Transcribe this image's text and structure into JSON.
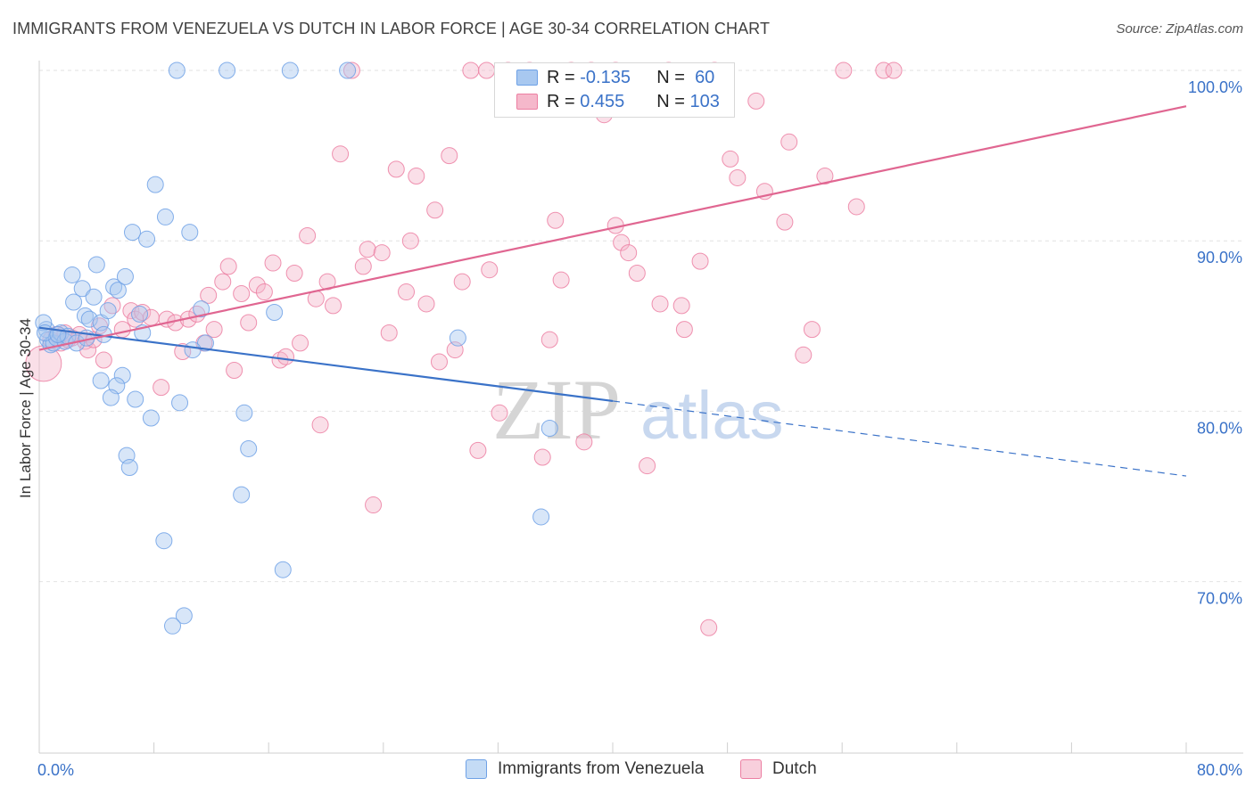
{
  "title": "IMMIGRANTS FROM VENEZUELA VS DUTCH IN LABOR FORCE | AGE 30-34 CORRELATION CHART",
  "source": "Source: ZipAtlas.com",
  "watermark": {
    "zip": "ZIP",
    "atlas": "atlas"
  },
  "legend": {
    "rows": [
      {
        "r_label": "R =",
        "r_value": "-0.135",
        "n_label": "N =",
        "n_value": "60",
        "color": "#a8c8f0"
      },
      {
        "r_label": "R =",
        "r_value": "0.455",
        "n_label": "N =",
        "n_value": "103",
        "color": "#f5b8cb"
      }
    ]
  },
  "chart_data": {
    "type": "scatter",
    "title": "IMMIGRANTS FROM VENEZUELA VS DUTCH IN LABOR FORCE | AGE 30-34 CORRELATION CHART",
    "xlabel": "",
    "ylabel": "In Labor Force | Age 30-34",
    "xlim": [
      0,
      80
    ],
    "ylim": [
      60,
      100
    ],
    "x_tick_labels": [
      "0.0%",
      "80.0%"
    ],
    "y_ticks": [
      70,
      80,
      90,
      100
    ],
    "y_tick_labels": [
      "70.0%",
      "80.0%",
      "90.0%",
      "100.0%"
    ],
    "grid": true,
    "legend_position": "top-center",
    "series": [
      {
        "name": "Immigrants from Venezuela",
        "color": "#6ea1e6",
        "fill": "#a8c8f0",
        "r": -0.135,
        "n": 60,
        "trend": {
          "x": [
            0,
            40
          ],
          "y": [
            84.9,
            80.6
          ],
          "dashed_to": [
            80,
            76.2
          ]
        },
        "points": [
          [
            0.5,
            84.8
          ],
          [
            0.6,
            84.2
          ],
          [
            0.8,
            83.9
          ],
          [
            1.0,
            84.0
          ],
          [
            1.2,
            84.3
          ],
          [
            1.5,
            84.6
          ],
          [
            1.8,
            84.1
          ],
          [
            2.0,
            84.4
          ],
          [
            0.3,
            85.2
          ],
          [
            0.4,
            84.6
          ],
          [
            2.3,
            88.0
          ],
          [
            2.4,
            86.4
          ],
          [
            3.0,
            87.2
          ],
          [
            3.2,
            85.6
          ],
          [
            3.5,
            85.4
          ],
          [
            3.8,
            86.7
          ],
          [
            4.0,
            88.6
          ],
          [
            4.3,
            85.2
          ],
          [
            4.5,
            84.5
          ],
          [
            4.8,
            85.9
          ],
          [
            5.2,
            87.3
          ],
          [
            5.5,
            87.1
          ],
          [
            6.0,
            87.9
          ],
          [
            6.5,
            90.5
          ],
          [
            7.0,
            85.7
          ],
          [
            7.2,
            84.6
          ],
          [
            7.5,
            90.1
          ],
          [
            8.1,
            93.3
          ],
          [
            8.8,
            91.4
          ],
          [
            10.5,
            90.5
          ],
          [
            6.7,
            80.7
          ],
          [
            5.8,
            82.1
          ],
          [
            5.4,
            81.5
          ],
          [
            4.3,
            81.8
          ],
          [
            5.0,
            80.8
          ],
          [
            7.8,
            79.6
          ],
          [
            9.8,
            80.5
          ],
          [
            14.3,
            79.9
          ],
          [
            14.6,
            77.8
          ],
          [
            6.1,
            77.4
          ],
          [
            6.3,
            76.7
          ],
          [
            14.1,
            75.1
          ],
          [
            17.0,
            70.7
          ],
          [
            8.7,
            72.4
          ],
          [
            10.1,
            68.0
          ],
          [
            9.3,
            67.4
          ],
          [
            11.6,
            84.0
          ],
          [
            10.7,
            83.6
          ],
          [
            11.3,
            86.0
          ],
          [
            16.4,
            85.8
          ],
          [
            9.6,
            100
          ],
          [
            13.1,
            100
          ],
          [
            17.5,
            100
          ],
          [
            21.5,
            100
          ],
          [
            29.2,
            84.3
          ],
          [
            35.6,
            79.0
          ],
          [
            35.0,
            73.8
          ],
          [
            1.3,
            84.5
          ],
          [
            2.6,
            84.0
          ],
          [
            3.3,
            84.3
          ]
        ]
      },
      {
        "name": "Dutch",
        "color": "#ec7fa2",
        "fill": "#f5b8cb",
        "r": 0.455,
        "n": 103,
        "trend": {
          "x": [
            0,
            80
          ],
          "y": [
            83.6,
            97.9
          ]
        },
        "points": [
          [
            0.3,
            82.8
          ],
          [
            0.8,
            84.2
          ],
          [
            1.2,
            84.5
          ],
          [
            1.5,
            84.0
          ],
          [
            1.8,
            84.6
          ],
          [
            2.0,
            84.2
          ],
          [
            2.3,
            84.3
          ],
          [
            2.8,
            84.5
          ],
          [
            3.2,
            84.1
          ],
          [
            3.4,
            83.6
          ],
          [
            3.8,
            84.2
          ],
          [
            4.5,
            83.0
          ],
          [
            4.2,
            85.0
          ],
          [
            5.1,
            86.2
          ],
          [
            5.8,
            84.8
          ],
          [
            6.4,
            85.9
          ],
          [
            6.7,
            85.4
          ],
          [
            7.2,
            85.8
          ],
          [
            7.8,
            85.5
          ],
          [
            8.5,
            81.4
          ],
          [
            8.9,
            85.4
          ],
          [
            9.5,
            85.2
          ],
          [
            10.0,
            83.5
          ],
          [
            10.4,
            85.4
          ],
          [
            11.0,
            85.7
          ],
          [
            11.5,
            84.0
          ],
          [
            11.8,
            86.8
          ],
          [
            12.2,
            84.8
          ],
          [
            12.8,
            87.6
          ],
          [
            13.2,
            88.5
          ],
          [
            13.6,
            82.4
          ],
          [
            14.1,
            86.9
          ],
          [
            14.6,
            85.2
          ],
          [
            15.2,
            87.4
          ],
          [
            15.7,
            87.0
          ],
          [
            16.3,
            88.7
          ],
          [
            16.8,
            83.0
          ],
          [
            17.2,
            83.2
          ],
          [
            17.8,
            88.1
          ],
          [
            18.2,
            84.0
          ],
          [
            18.7,
            90.3
          ],
          [
            19.3,
            86.6
          ],
          [
            19.6,
            79.2
          ],
          [
            20.1,
            87.6
          ],
          [
            20.5,
            86.2
          ],
          [
            21.0,
            95.1
          ],
          [
            21.8,
            100
          ],
          [
            22.6,
            88.5
          ],
          [
            22.9,
            89.5
          ],
          [
            23.3,
            74.5
          ],
          [
            23.9,
            89.3
          ],
          [
            24.4,
            84.6
          ],
          [
            24.9,
            94.2
          ],
          [
            25.6,
            87.0
          ],
          [
            25.9,
            90.0
          ],
          [
            26.3,
            93.8
          ],
          [
            27.0,
            86.3
          ],
          [
            27.6,
            91.8
          ],
          [
            27.9,
            82.9
          ],
          [
            28.6,
            95.0
          ],
          [
            29.0,
            83.6
          ],
          [
            29.5,
            87.6
          ],
          [
            30.1,
            100
          ],
          [
            30.6,
            77.7
          ],
          [
            31.2,
            100
          ],
          [
            31.4,
            88.3
          ],
          [
            32.1,
            79.9
          ],
          [
            32.7,
            100
          ],
          [
            34.2,
            100
          ],
          [
            35.1,
            77.3
          ],
          [
            35.6,
            84.2
          ],
          [
            36.0,
            91.2
          ],
          [
            36.4,
            87.7
          ],
          [
            37.1,
            100
          ],
          [
            38.0,
            78.2
          ],
          [
            38.5,
            100
          ],
          [
            39.4,
            97.4
          ],
          [
            40.2,
            100
          ],
          [
            40.2,
            90.9
          ],
          [
            40.6,
            89.9
          ],
          [
            41.1,
            89.3
          ],
          [
            41.7,
            88.1
          ],
          [
            42.4,
            76.8
          ],
          [
            43.3,
            86.3
          ],
          [
            43.9,
            100
          ],
          [
            44.8,
            86.2
          ],
          [
            45.0,
            84.8
          ],
          [
            46.1,
            88.8
          ],
          [
            46.7,
            67.3
          ],
          [
            47.1,
            100
          ],
          [
            48.2,
            94.8
          ],
          [
            48.7,
            93.7
          ],
          [
            50.0,
            98.2
          ],
          [
            50.6,
            92.9
          ],
          [
            52.0,
            91.1
          ],
          [
            52.3,
            95.8
          ],
          [
            53.3,
            83.3
          ],
          [
            53.9,
            84.8
          ],
          [
            54.8,
            93.8
          ],
          [
            56.1,
            100
          ],
          [
            57.0,
            92.0
          ],
          [
            58.9,
            100
          ],
          [
            59.6,
            100
          ]
        ]
      }
    ]
  },
  "bottom_legend": {
    "items": [
      {
        "label": "Immigrants from Venezuela",
        "color": "#a8c8f0"
      },
      {
        "label": "Dutch",
        "color": "#f5b8cb"
      }
    ]
  }
}
